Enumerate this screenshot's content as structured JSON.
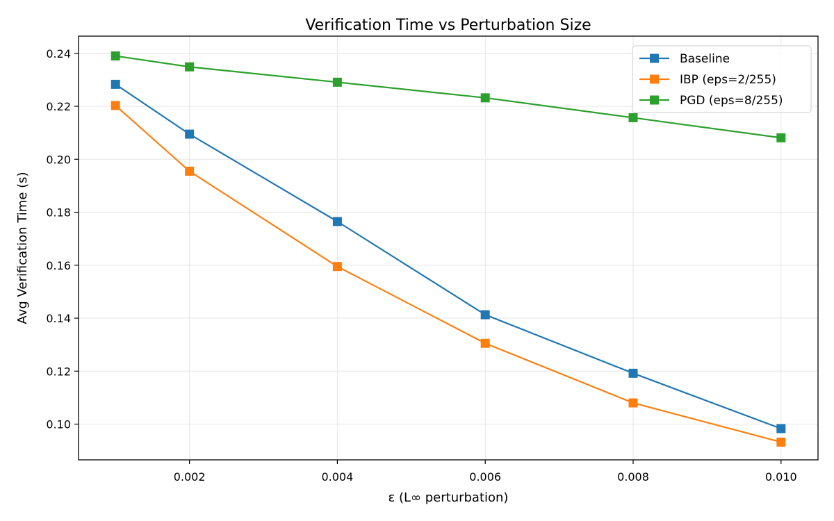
{
  "chart_data": {
    "type": "line",
    "title": "Verification Time vs Perturbation Size",
    "xlabel": "ε (L∞ perturbation)",
    "ylabel": "Avg Verification Time (s)",
    "x": [
      0.001,
      0.002,
      0.004,
      0.006,
      0.008,
      0.01
    ],
    "xlim": [
      0.0005,
      0.0105
    ],
    "ylim": [
      0.0865,
      0.2465
    ],
    "xticks": [
      0.002,
      0.004,
      0.006,
      0.008,
      0.01
    ],
    "xtick_labels": [
      "0.002",
      "0.004",
      "0.006",
      "0.008",
      "0.010"
    ],
    "yticks": [
      0.1,
      0.12,
      0.14,
      0.16,
      0.18,
      0.2,
      0.22,
      0.24
    ],
    "ytick_labels": [
      "0.10",
      "0.12",
      "0.14",
      "0.16",
      "0.18",
      "0.20",
      "0.22",
      "0.24"
    ],
    "grid": true,
    "legend_position": "top-right",
    "marker": "square",
    "series": [
      {
        "name": "Baseline",
        "color": "#1f77b4",
        "values": [
          0.2283,
          0.2095,
          0.1765,
          0.1413,
          0.1192,
          0.0983
        ]
      },
      {
        "name": "IBP (eps=2/255)",
        "color": "#ff7f0e",
        "values": [
          0.2203,
          0.1955,
          0.1595,
          0.1305,
          0.108,
          0.0932
        ]
      },
      {
        "name": "PGD (eps=8/255)",
        "color": "#2ca02c",
        "values": [
          0.239,
          0.2349,
          0.2291,
          0.2232,
          0.2157,
          0.2081
        ]
      }
    ]
  }
}
